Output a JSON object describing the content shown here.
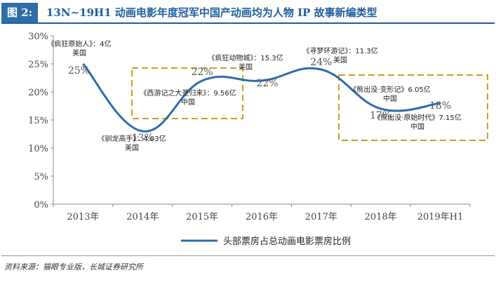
{
  "header": {
    "figure_label": "图 2:",
    "title": "13N~19H1 动画电影年度冠军中国产动画均为人物 IP 故事新编类型"
  },
  "source": "资料来源：猫眼专业版，长城证券研究所",
  "chart_data": {
    "type": "line",
    "title": "13N~19H1 动画电影年度冠军中国产动画均为人物 IP 故事新编类型",
    "categories": [
      "2013年",
      "2014年",
      "2015年",
      "2016年",
      "2017年",
      "2018年",
      "2019年H1"
    ],
    "series": [
      {
        "name": "头部票房占总动画电影票房比例",
        "values": [
          25,
          13,
          22,
          22,
          24,
          17,
          18
        ],
        "labels": [
          "25%",
          "13%",
          "22%",
          "22%",
          "24%",
          "17%",
          "18%"
        ],
        "color": "#2e6da8"
      }
    ],
    "ylim": [
      0,
      30
    ],
    "yticks": [
      "0%",
      "5%",
      "10%",
      "15%",
      "20%",
      "25%",
      "30%"
    ],
    "legend_position": "bottom-center",
    "grid": false,
    "annotations": [
      {
        "lines": [
          "《疯狂原始人》：4亿",
          "美国"
        ]
      },
      {
        "lines": [
          "《驯龙高手》：4.03亿",
          "美国"
        ]
      },
      {
        "lines": [
          "《西游记之大圣归来》：9.56亿",
          "中国"
        ]
      },
      {
        "lines": [
          "《疯狂动物城》：15.3亿",
          "美国"
        ]
      },
      {
        "lines": [
          "《寻梦环游记》：11.3亿",
          "美国"
        ]
      },
      {
        "lines": [
          "《熊出没·变形记》6.05亿",
          "中国"
        ]
      },
      {
        "lines": [
          "《熊出没·原始时代》7.15亿",
          "中国"
        ]
      }
    ],
    "highlight_boxes": [
      {
        "around": [
          "2014年",
          "2016年"
        ],
        "color": "#c8a020"
      },
      {
        "around": [
          "2018年",
          "2019年H1"
        ],
        "color": "#c8a020"
      }
    ]
  }
}
